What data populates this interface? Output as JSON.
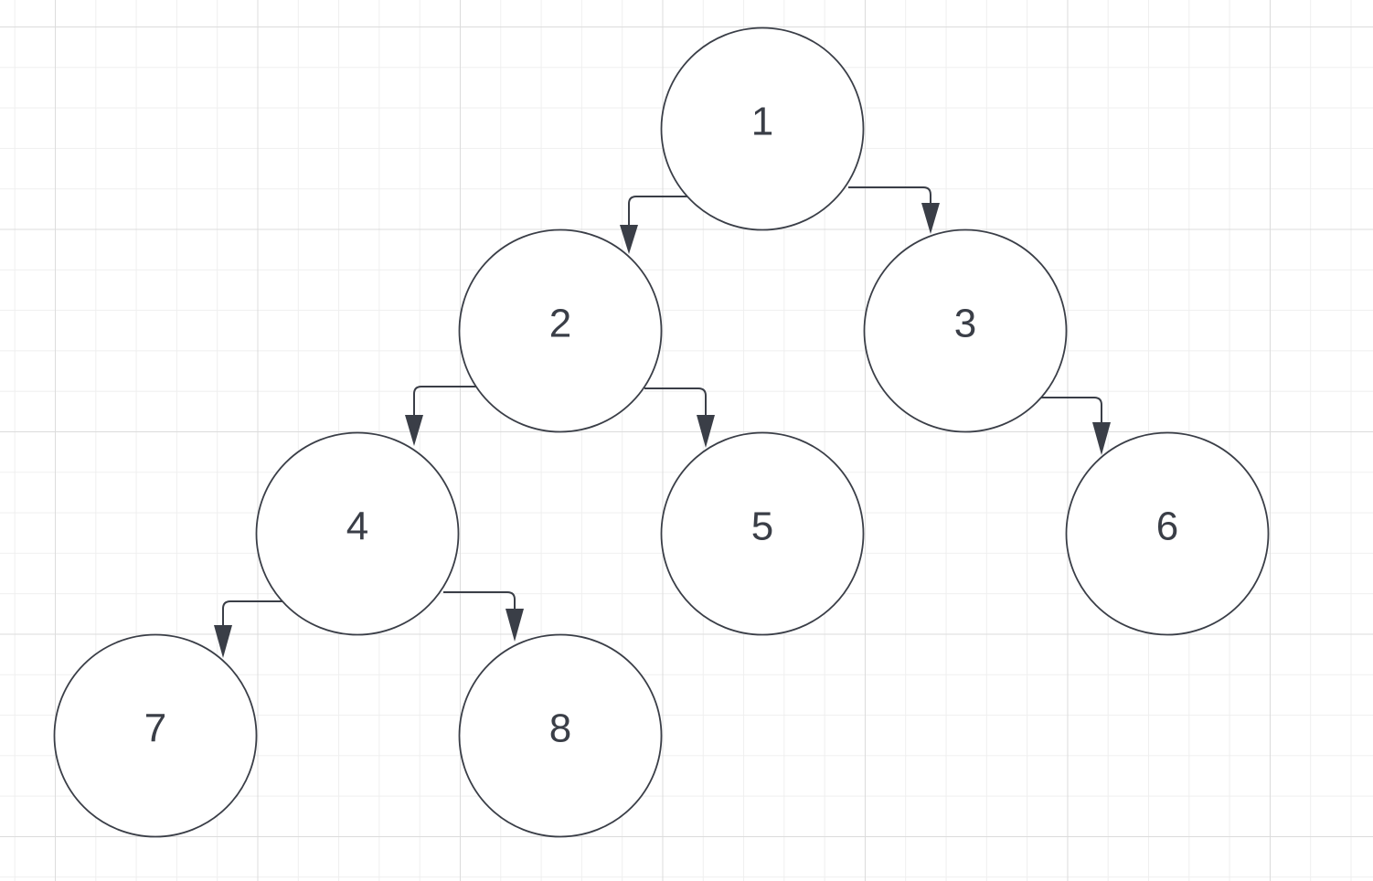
{
  "diagram": {
    "nodes": [
      {
        "id": "1",
        "label": "1"
      },
      {
        "id": "2",
        "label": "2"
      },
      {
        "id": "3",
        "label": "3"
      },
      {
        "id": "4",
        "label": "4"
      },
      {
        "id": "5",
        "label": "5"
      },
      {
        "id": "6",
        "label": "6"
      },
      {
        "id": "7",
        "label": "7"
      },
      {
        "id": "8",
        "label": "8"
      }
    ],
    "edges": [
      {
        "from": "1",
        "to": "2"
      },
      {
        "from": "1",
        "to": "3"
      },
      {
        "from": "2",
        "to": "4"
      },
      {
        "from": "2",
        "to": "5"
      },
      {
        "from": "3",
        "to": "6"
      },
      {
        "from": "4",
        "to": "7"
      },
      {
        "from": "4",
        "to": "8"
      }
    ],
    "colors": {
      "stroke": "#3a3e47",
      "fill": "#ffffff",
      "grid_major": "#dcdcdc",
      "grid_minor": "#efefef"
    }
  }
}
